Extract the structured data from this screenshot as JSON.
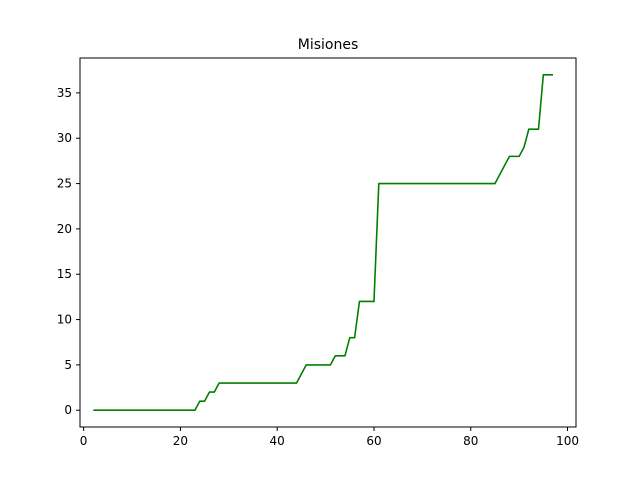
{
  "chart_data": {
    "type": "line",
    "title": "Misiones",
    "xlabel": "",
    "ylabel": "",
    "xlim": [
      -0.75,
      101.75
    ],
    "ylim": [
      -1.85,
      38.85
    ],
    "xticks": [
      0,
      20,
      40,
      60,
      80,
      100
    ],
    "yticks": [
      0,
      5,
      10,
      15,
      20,
      25,
      30,
      35
    ],
    "grid": false,
    "legend": "none",
    "series": [
      {
        "color": "#008000",
        "points": [
          [
            2,
            0
          ],
          [
            23,
            0
          ],
          [
            24,
            1
          ],
          [
            25,
            1
          ],
          [
            26,
            2
          ],
          [
            27,
            2
          ],
          [
            28,
            3
          ],
          [
            44,
            3
          ],
          [
            46,
            5
          ],
          [
            51,
            5
          ],
          [
            52,
            6
          ],
          [
            54,
            6
          ],
          [
            55,
            8
          ],
          [
            56,
            8
          ],
          [
            57,
            12
          ],
          [
            60,
            12
          ],
          [
            61,
            25
          ],
          [
            85,
            25
          ],
          [
            88,
            28
          ],
          [
            90,
            28
          ],
          [
            91,
            29
          ],
          [
            92,
            31
          ],
          [
            94,
            31
          ],
          [
            95,
            37
          ],
          [
            97,
            37
          ]
        ]
      }
    ]
  }
}
